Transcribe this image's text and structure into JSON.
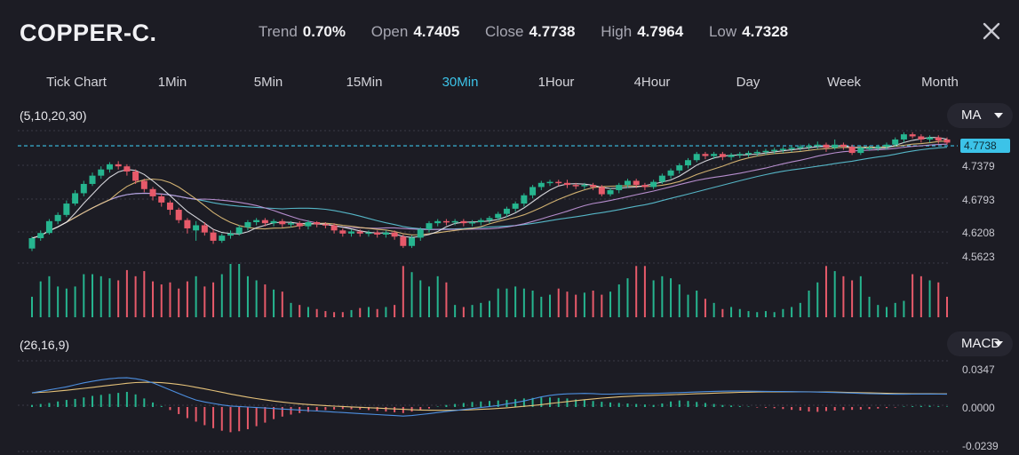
{
  "header": {
    "symbol": "COPPER-C.",
    "stats": [
      {
        "label": "Trend",
        "value": "0.70%"
      },
      {
        "label": "Open",
        "value": "4.7405"
      },
      {
        "label": "Close",
        "value": "4.7738"
      },
      {
        "label": "High",
        "value": "4.7964"
      },
      {
        "label": "Low",
        "value": "4.7328"
      }
    ],
    "close_icon": "close-icon"
  },
  "tabs": [
    {
      "label": "Tick Chart",
      "active": false
    },
    {
      "label": "1Min",
      "active": false
    },
    {
      "label": "5Min",
      "active": false
    },
    {
      "label": "15Min",
      "active": false
    },
    {
      "label": "30Min",
      "active": true
    },
    {
      "label": "1Hour",
      "active": false
    },
    {
      "label": "4Hour",
      "active": false
    },
    {
      "label": "Day",
      "active": false
    },
    {
      "label": "Week",
      "active": false
    },
    {
      "label": "Month",
      "active": false
    }
  ],
  "indicators": {
    "ma_params": "(5,10,20,30)",
    "ma_dropdown": "MA",
    "macd_params": "(26,16,9)",
    "macd_dropdown": "MACD"
  },
  "colors": {
    "up": "#26b58f",
    "down": "#e75a6a",
    "accent": "#3cc3e8",
    "ma5": "#e9e9ee",
    "ma10": "#e5c27a",
    "ma20": "#c89ae0",
    "ma30": "#5cc7d8"
  },
  "chart_data": [
    {
      "type": "candlestick",
      "title": "",
      "price_labels": [
        "4.7379",
        "4.6793",
        "4.6208",
        "4.5623"
      ],
      "current_price": "4.7738",
      "ylim": [
        4.54,
        4.81
      ],
      "candles": [
        [
          4.575,
          4.595,
          4.57,
          4.598
        ],
        [
          4.595,
          4.605,
          4.59,
          4.61
        ],
        [
          4.605,
          4.628,
          4.602,
          4.632
        ],
        [
          4.628,
          4.64,
          4.622,
          4.645
        ],
        [
          4.64,
          4.662,
          4.636,
          4.668
        ],
        [
          4.662,
          4.682,
          4.658,
          4.688
        ],
        [
          4.682,
          4.7,
          4.676,
          4.706
        ],
        [
          4.7,
          4.716,
          4.696,
          4.722
        ],
        [
          4.716,
          4.728,
          4.71,
          4.734
        ],
        [
          4.728,
          4.738,
          4.722,
          4.742
        ],
        [
          4.738,
          4.734,
          4.728,
          4.744
        ],
        [
          4.734,
          4.724,
          4.716,
          4.738
        ],
        [
          4.724,
          4.706,
          4.7,
          4.728
        ],
        [
          4.706,
          4.69,
          4.684,
          4.71
        ],
        [
          4.69,
          4.676,
          4.668,
          4.694
        ],
        [
          4.676,
          4.664,
          4.656,
          4.68
        ],
        [
          4.664,
          4.65,
          4.64,
          4.668
        ],
        [
          4.65,
          4.63,
          4.624,
          4.654
        ],
        [
          4.63,
          4.614,
          4.604,
          4.634
        ],
        [
          4.61,
          4.62,
          4.59,
          4.628
        ],
        [
          4.62,
          4.606,
          4.6,
          4.626
        ],
        [
          4.606,
          4.59,
          4.584,
          4.612
        ],
        [
          4.59,
          4.6,
          4.586,
          4.604
        ],
        [
          4.6,
          4.604,
          4.594,
          4.61
        ],
        [
          4.604,
          4.616,
          4.6,
          4.62
        ],
        [
          4.616,
          4.626,
          4.61,
          4.63
        ],
        [
          4.626,
          4.63,
          4.62,
          4.634
        ],
        [
          4.63,
          4.624,
          4.618,
          4.634
        ],
        [
          4.624,
          4.628,
          4.618,
          4.632
        ],
        [
          4.628,
          4.622,
          4.616,
          4.632
        ],
        [
          4.622,
          4.624,
          4.616,
          4.628
        ],
        [
          4.624,
          4.618,
          4.612,
          4.628
        ],
        [
          4.618,
          4.626,
          4.612,
          4.63
        ],
        [
          4.626,
          4.622,
          4.616,
          4.628
        ],
        [
          4.622,
          4.62,
          4.614,
          4.626
        ],
        [
          4.62,
          4.61,
          4.604,
          4.624
        ],
        [
          4.61,
          4.604,
          4.598,
          4.614
        ],
        [
          4.604,
          4.608,
          4.598,
          4.612
        ],
        [
          4.608,
          4.604,
          4.598,
          4.612
        ],
        [
          4.604,
          4.606,
          4.598,
          4.61
        ],
        [
          4.606,
          4.602,
          4.596,
          4.61
        ],
        [
          4.602,
          4.606,
          4.596,
          4.61
        ],
        [
          4.606,
          4.598,
          4.592,
          4.61
        ],
        [
          4.598,
          4.58,
          4.576,
          4.602
        ],
        [
          4.58,
          4.596,
          4.576,
          4.6
        ],
        [
          4.596,
          4.612,
          4.59,
          4.616
        ],
        [
          4.612,
          4.624,
          4.606,
          4.628
        ],
        [
          4.624,
          4.628,
          4.618,
          4.632
        ],
        [
          4.628,
          4.626,
          4.62,
          4.632
        ],
        [
          4.626,
          4.628,
          4.62,
          4.632
        ],
        [
          4.628,
          4.624,
          4.618,
          4.632
        ],
        [
          4.624,
          4.626,
          4.618,
          4.63
        ],
        [
          4.626,
          4.63,
          4.62,
          4.634
        ],
        [
          4.63,
          4.634,
          4.624,
          4.638
        ],
        [
          4.634,
          4.642,
          4.63,
          4.646
        ],
        [
          4.642,
          4.652,
          4.636,
          4.656
        ],
        [
          4.652,
          4.662,
          4.646,
          4.666
        ],
        [
          4.662,
          4.678,
          4.656,
          4.682
        ],
        [
          4.678,
          4.694,
          4.672,
          4.698
        ],
        [
          4.694,
          4.702,
          4.688,
          4.706
        ],
        [
          4.702,
          4.704,
          4.696,
          4.708
        ],
        [
          4.704,
          4.702,
          4.696,
          4.708
        ],
        [
          4.702,
          4.698,
          4.692,
          4.708
        ],
        [
          4.698,
          4.696,
          4.69,
          4.702
        ],
        [
          4.696,
          4.698,
          4.69,
          4.702
        ],
        [
          4.698,
          4.694,
          4.688,
          4.702
        ],
        [
          4.694,
          4.68,
          4.676,
          4.698
        ],
        [
          4.68,
          4.688,
          4.676,
          4.692
        ],
        [
          4.688,
          4.698,
          4.682,
          4.702
        ],
        [
          4.698,
          4.706,
          4.692,
          4.71
        ],
        [
          4.706,
          4.698,
          4.692,
          4.71
        ],
        [
          4.698,
          4.694,
          4.688,
          4.702
        ],
        [
          4.694,
          4.704,
          4.69,
          4.708
        ],
        [
          4.704,
          4.716,
          4.7,
          4.72
        ],
        [
          4.716,
          4.726,
          4.71,
          4.73
        ],
        [
          4.726,
          4.736,
          4.72,
          4.74
        ],
        [
          4.736,
          4.746,
          4.73,
          4.75
        ],
        [
          4.746,
          4.758,
          4.742,
          4.762
        ],
        [
          4.758,
          4.754,
          4.748,
          4.762
        ],
        [
          4.754,
          4.758,
          4.748,
          4.762
        ],
        [
          4.758,
          4.752,
          4.746,
          4.762
        ],
        [
          4.752,
          4.756,
          4.746,
          4.76
        ],
        [
          4.756,
          4.758,
          4.75,
          4.762
        ],
        [
          4.758,
          4.76,
          4.752,
          4.764
        ],
        [
          4.76,
          4.762,
          4.754,
          4.766
        ],
        [
          4.762,
          4.764,
          4.756,
          4.768
        ],
        [
          4.764,
          4.766,
          4.758,
          4.77
        ],
        [
          4.766,
          4.768,
          4.76,
          4.772
        ],
        [
          4.768,
          4.77,
          4.762,
          4.774
        ],
        [
          4.77,
          4.772,
          4.764,
          4.776
        ],
        [
          4.772,
          4.774,
          4.766,
          4.778
        ],
        [
          4.774,
          4.776,
          4.768,
          4.782
        ],
        [
          4.776,
          4.77,
          4.762,
          4.78
        ],
        [
          4.77,
          4.776,
          4.766,
          4.786
        ],
        [
          4.776,
          4.772,
          4.766,
          4.78
        ],
        [
          4.772,
          4.76,
          4.756,
          4.776
        ],
        [
          4.76,
          4.77,
          4.756,
          4.774
        ],
        [
          4.77,
          4.77,
          4.764,
          4.774
        ],
        [
          4.77,
          4.772,
          4.764,
          4.776
        ],
        [
          4.772,
          4.776,
          4.766,
          4.78
        ],
        [
          4.776,
          4.786,
          4.772,
          4.79
        ],
        [
          4.786,
          4.796,
          4.78,
          4.8
        ],
        [
          4.796,
          4.792,
          4.788,
          4.8
        ],
        [
          4.792,
          4.786,
          4.78,
          4.796
        ],
        [
          4.786,
          4.79,
          4.78,
          4.794
        ],
        [
          4.79,
          4.784,
          4.778,
          4.794
        ],
        [
          4.786,
          4.78,
          4.776,
          4.79
        ]
      ],
      "volumes": [
        20,
        35,
        40,
        30,
        28,
        30,
        42,
        42,
        40,
        38,
        36,
        46,
        40,
        45,
        35,
        32,
        34,
        28,
        35,
        40,
        30,
        34,
        42,
        52,
        52,
        40,
        36,
        32,
        27,
        25,
        14,
        12,
        10,
        8,
        6,
        5,
        5,
        7,
        9,
        10,
        8,
        10,
        12,
        50,
        44,
        36,
        30,
        40,
        34,
        12,
        10,
        12,
        14,
        16,
        28,
        28,
        30,
        28,
        26,
        20,
        22,
        28,
        25,
        22,
        24,
        26,
        22,
        25,
        32,
        38,
        50,
        50,
        36,
        40,
        38,
        32,
        22,
        26,
        18,
        14,
        8,
        10,
        8,
        6,
        5,
        6,
        5,
        8,
        10,
        14,
        26,
        34,
        50,
        45,
        40,
        36,
        40,
        20,
        12,
        10,
        14,
        16,
        42,
        40,
        36,
        34,
        20
      ]
    },
    {
      "type": "macd",
      "title": "",
      "labels": [
        "0.0347",
        "0.0000",
        "-0.0239"
      ],
      "ylim": [
        -0.026,
        0.037
      ],
      "macd": [
        0.014,
        0.0155,
        0.017,
        0.0185,
        0.02,
        0.022,
        0.024,
        0.0255,
        0.027,
        0.028,
        0.0288,
        0.029,
        0.028,
        0.0265,
        0.024,
        0.0205,
        0.017,
        0.0135,
        0.01,
        0.007,
        0.005,
        0.0035,
        0.002,
        0.001,
        0.0005,
        0.0,
        -0.0005,
        -0.001,
        -0.0015,
        -0.002,
        -0.0025,
        -0.003,
        -0.0035,
        -0.004,
        -0.0045,
        -0.005,
        -0.0055,
        -0.006,
        -0.0065,
        -0.007,
        -0.0075,
        -0.008,
        -0.0085,
        -0.009,
        -0.0085,
        -0.0075,
        -0.0065,
        -0.0055,
        -0.0045,
        -0.0035,
        -0.0025,
        -0.0015,
        -0.0005,
        0.0005,
        0.0015,
        0.003,
        0.0045,
        0.006,
        0.008,
        0.01,
        0.0115,
        0.0125,
        0.013,
        0.0133,
        0.0135,
        0.0133,
        0.0128,
        0.0128,
        0.013,
        0.0132,
        0.0133,
        0.0134,
        0.0135,
        0.0137,
        0.014,
        0.0143,
        0.0146,
        0.0149,
        0.0152,
        0.0155,
        0.0157,
        0.0158,
        0.0158,
        0.0157,
        0.0156,
        0.0155,
        0.0154,
        0.0153,
        0.0152,
        0.0151,
        0.015,
        0.0148,
        0.0146,
        0.0144,
        0.0141,
        0.0138,
        0.0135,
        0.0132,
        0.013,
        0.0128,
        0.0127,
        0.0127,
        0.0128,
        0.0129,
        0.0129,
        0.0128,
        0.0127
      ],
      "signal": [
        0.014,
        0.0145,
        0.015,
        0.0158,
        0.0166,
        0.0175,
        0.0185,
        0.0195,
        0.0205,
        0.0215,
        0.0225,
        0.0235,
        0.0242,
        0.0245,
        0.0245,
        0.0241,
        0.0234,
        0.0224,
        0.0211,
        0.0196,
        0.018,
        0.0163,
        0.0146,
        0.0129,
        0.0113,
        0.0098,
        0.0084,
        0.0071,
        0.0059,
        0.0049,
        0.004,
        0.0032,
        0.0025,
        0.0019,
        0.0014,
        0.0009,
        0.0005,
        0.0001,
        -0.0003,
        -0.0007,
        -0.0011,
        -0.0015,
        -0.0019,
        -0.0023,
        -0.0027,
        -0.003,
        -0.0032,
        -0.0033,
        -0.0033,
        -0.0032,
        -0.003,
        -0.0027,
        -0.0023,
        -0.0019,
        -0.0014,
        -0.0008,
        -0.0001,
        0.0007,
        0.0015,
        0.0024,
        0.0034,
        0.0044,
        0.0054,
        0.0063,
        0.0072,
        0.008,
        0.0088,
        0.0094,
        0.01,
        0.0105,
        0.0109,
        0.0113,
        0.0116,
        0.0119,
        0.0122,
        0.0125,
        0.0128,
        0.0131,
        0.0134,
        0.0137,
        0.014,
        0.0143,
        0.0145,
        0.0147,
        0.0149,
        0.015,
        0.0151,
        0.0151,
        0.0151,
        0.0151,
        0.0151,
        0.015,
        0.0149,
        0.0148,
        0.0146,
        0.0144,
        0.0142,
        0.014,
        0.0138,
        0.0136,
        0.0134,
        0.0133,
        0.0132,
        0.0131,
        0.0131,
        0.013,
        0.013
      ],
      "histogram": [
        0.002,
        0.003,
        0.004,
        0.0055,
        0.007,
        0.008,
        0.0095,
        0.011,
        0.012,
        0.013,
        0.014,
        0.015,
        0.0125,
        0.0085,
        0.0045,
        0.001,
        -0.003,
        -0.007,
        -0.011,
        -0.0145,
        -0.018,
        -0.021,
        -0.0235,
        -0.025,
        -0.024,
        -0.022,
        -0.019,
        -0.0155,
        -0.012,
        -0.0095,
        -0.0075,
        -0.006,
        -0.0048,
        -0.0038,
        -0.003,
        -0.0025,
        -0.002,
        -0.0022,
        -0.0025,
        -0.003,
        -0.0038,
        -0.0045,
        -0.0052,
        -0.006,
        -0.0045,
        -0.003,
        -0.0015,
        0.0005,
        0.002,
        0.003,
        0.004,
        0.005,
        0.0055,
        0.006,
        0.0065,
        0.007,
        0.0078,
        0.0085,
        0.009,
        0.0095,
        0.0095,
        0.009,
        0.0085,
        0.0075,
        0.007,
        0.006,
        0.0052,
        0.0045,
        0.004,
        0.0035,
        0.003,
        0.0025,
        0.002,
        0.0035,
        0.0055,
        0.0065,
        0.006,
        0.005,
        0.004,
        0.003,
        0.002,
        0.0015,
        0.001,
        0.0005,
        -0.0005,
        -0.0008,
        -0.0012,
        -0.002,
        -0.0028,
        -0.0035,
        -0.0045,
        -0.0048,
        -0.004,
        -0.0035,
        -0.003,
        -0.0028,
        -0.0025,
        -0.002,
        -0.0015,
        -0.001,
        -0.0005,
        0.0005,
        0.0008,
        0.0011,
        0.0013,
        0.0008,
        0.0005
      ]
    }
  ]
}
